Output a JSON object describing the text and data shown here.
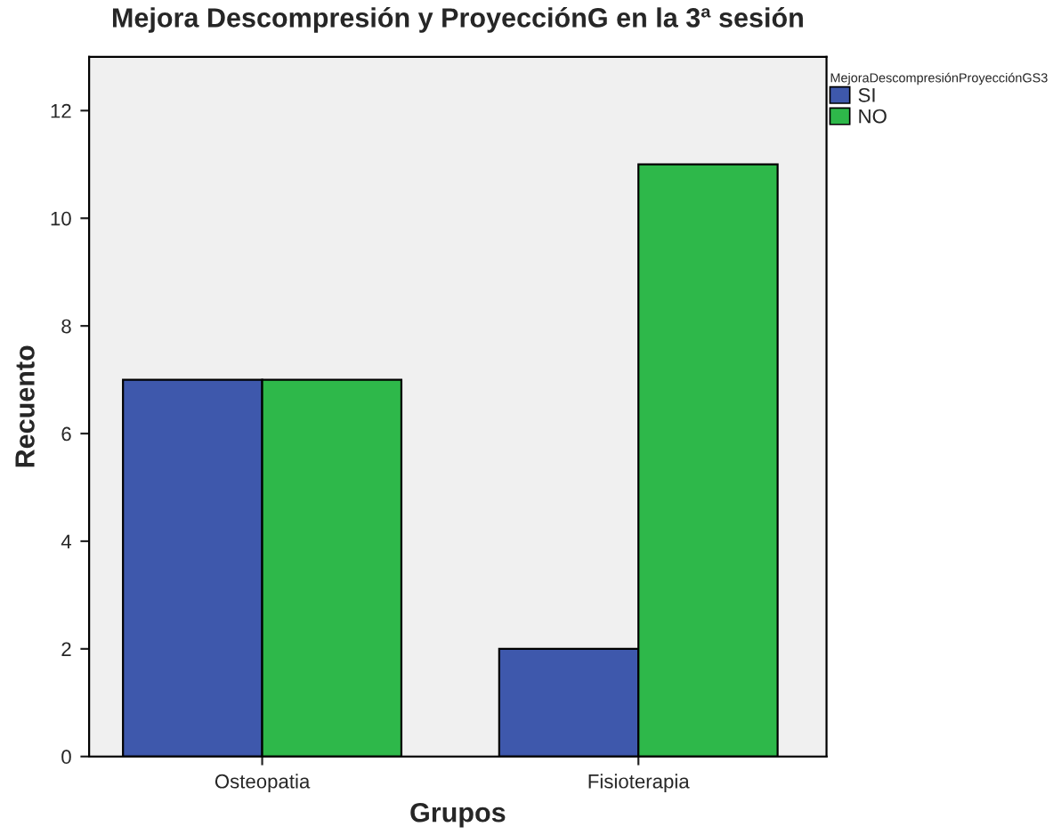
{
  "chart_data": {
    "type": "bar",
    "title": "Mejora Descompresión y ProyecciónG en la 3ª sesión",
    "xlabel": "Grupos",
    "ylabel": "Recuento",
    "legend_title": "MejoraDescompresiónProyecciónGS3",
    "categories": [
      "Osteopatia",
      "Fisioterapia"
    ],
    "series": [
      {
        "name": "SI",
        "color": "#3e58ac",
        "values": [
          7,
          2
        ]
      },
      {
        "name": "NO",
        "color": "#2eb84a",
        "values": [
          7,
          11
        ]
      }
    ],
    "ylim": [
      0,
      13
    ],
    "yticks": [
      0,
      2,
      4,
      6,
      8,
      10,
      12
    ],
    "grid": false,
    "legend": "top right"
  }
}
